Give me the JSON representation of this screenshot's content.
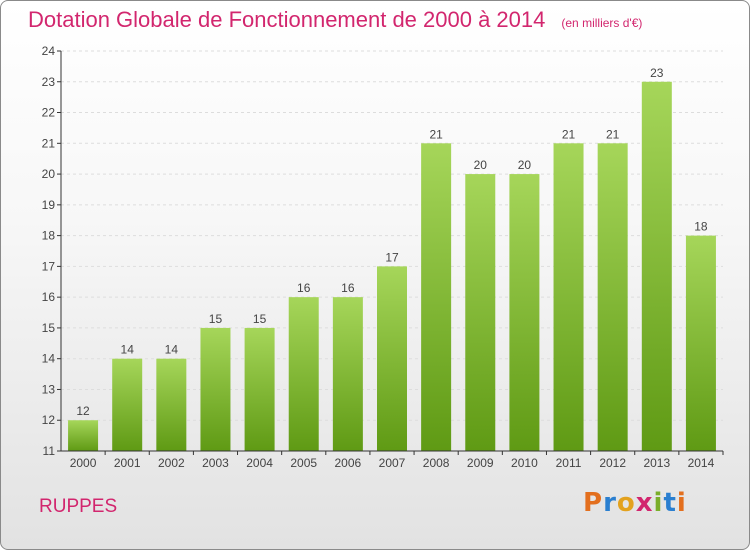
{
  "header": {
    "title": "Dotation Globale de Fonctionnement de 2000 à 2014",
    "subtitle": "(en milliers d'€)"
  },
  "footer": {
    "commune": "RUPPES",
    "brand": "Proxiti",
    "brand_colors": [
      "#e36f1e",
      "#2a7fd0",
      "#e3a21e",
      "#d2266e",
      "#7aae2a",
      "#2a7fd0",
      "#e36f1e"
    ]
  },
  "colors": {
    "bar_top": "#a6d65a",
    "bar_bottom": "#5f9a14",
    "title": "#d2266e",
    "grid": "#dddddd",
    "axis": "#333333"
  },
  "chart_data": {
    "type": "bar",
    "title": "Dotation Globale de Fonctionnement de 2000 à 2014",
    "subtitle": "(en milliers d'€)",
    "xlabel": "",
    "ylabel": "",
    "categories": [
      "2000",
      "2001",
      "2002",
      "2003",
      "2004",
      "2005",
      "2006",
      "2007",
      "2008",
      "2009",
      "2010",
      "2011",
      "2012",
      "2013",
      "2014"
    ],
    "values": [
      12,
      14,
      14,
      15,
      15,
      16,
      16,
      17,
      21,
      20,
      20,
      21,
      21,
      23,
      18
    ],
    "ylim": [
      11,
      24
    ],
    "yticks": [
      11,
      12,
      13,
      14,
      15,
      16,
      17,
      18,
      19,
      20,
      21,
      22,
      23,
      24
    ],
    "grid": true,
    "data_labels": true
  }
}
